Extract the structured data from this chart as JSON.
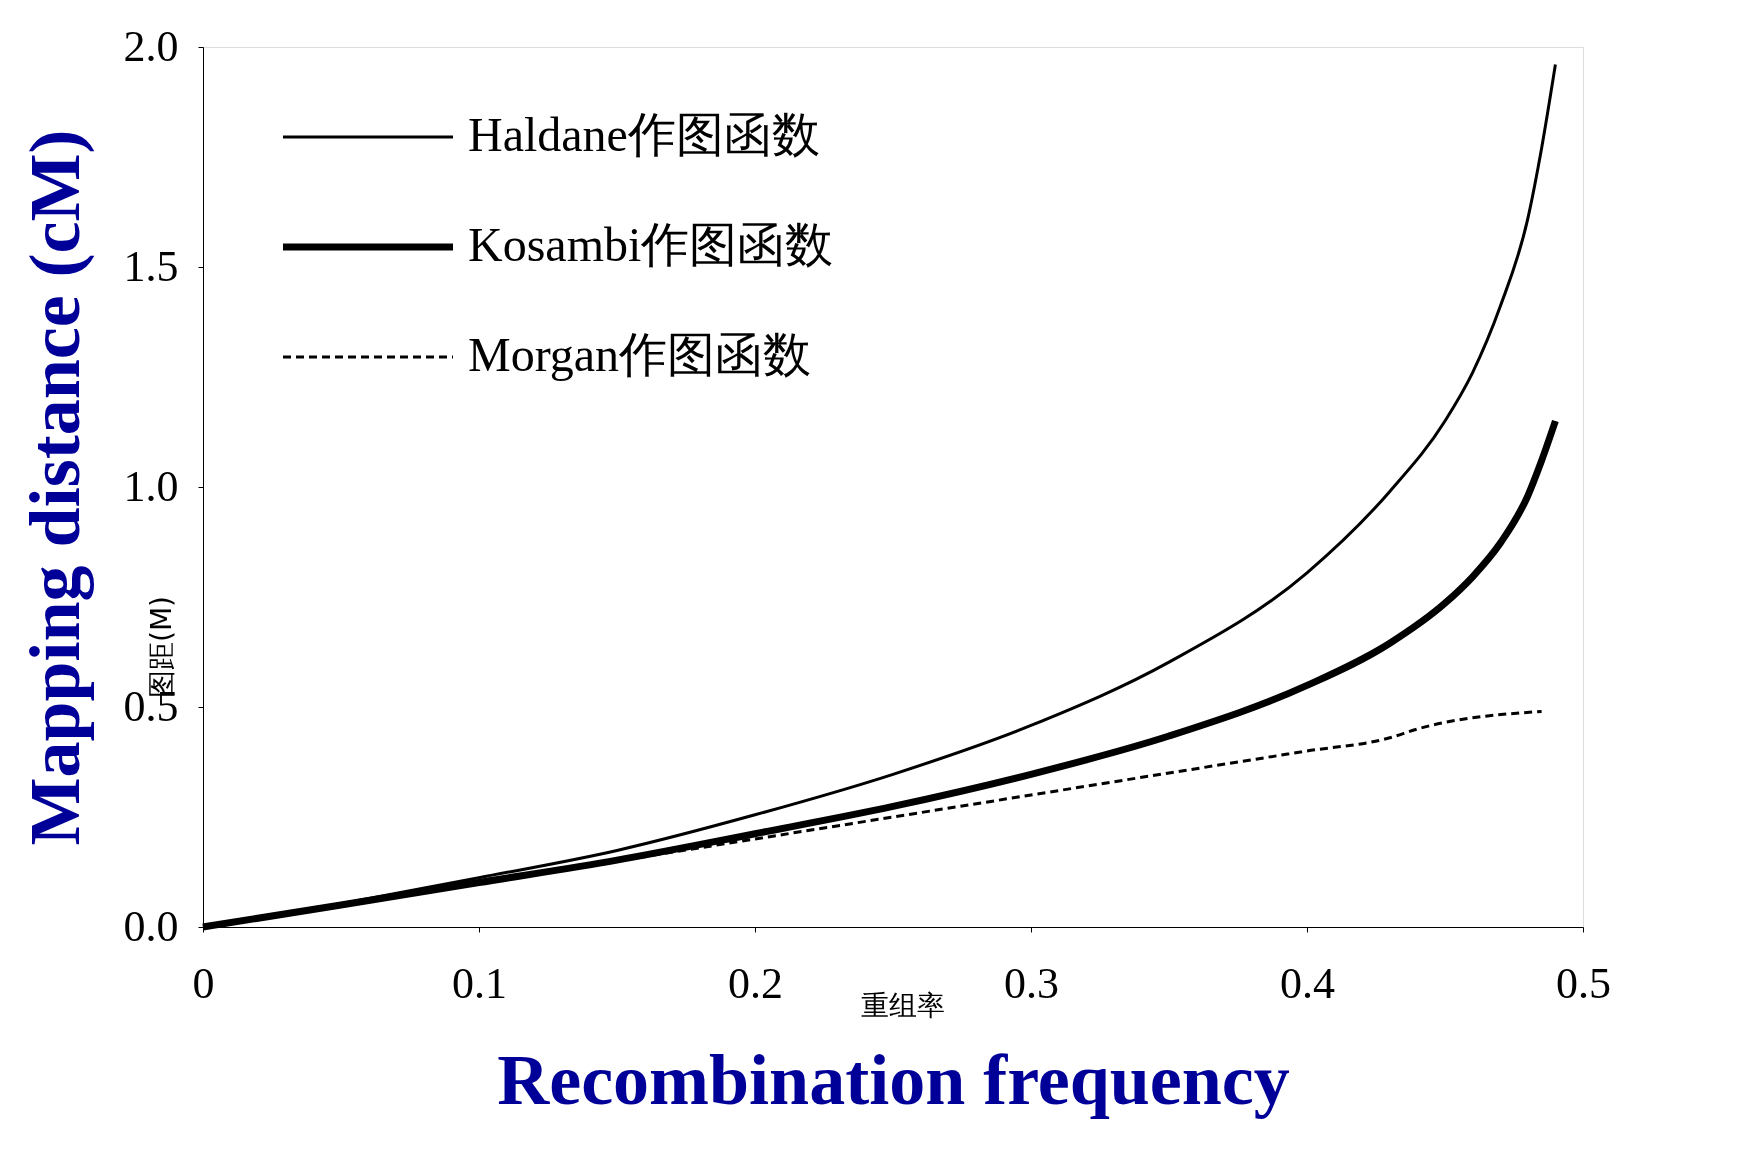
{
  "chart_data": {
    "type": "line",
    "xlabel": "Recombination frequency",
    "ylabel": "Mapping distance (cM)",
    "annotations": [
      "重组率",
      "图距(M)"
    ],
    "xlim": [
      0,
      0.5
    ],
    "xticks": [
      {
        "value": 0,
        "label": "0"
      },
      0.1,
      0.2,
      0.3,
      0.4,
      0.5
    ],
    "ylim": [
      0,
      2.0
    ],
    "yticks": [
      {
        "value": 0,
        "label": "0.0"
      },
      0.5,
      {
        "value": 1,
        "label": "1.0"
      },
      1.5,
      {
        "value": 2,
        "label": "2.0"
      }
    ],
    "grid": false,
    "legend": "top left",
    "marker": "none",
    "series": [
      {
        "name": "Haldane作图函数",
        "color": "#000000",
        "line_style": "solid",
        "x": [
          0,
          0.05,
          0.1,
          0.15,
          0.2,
          0.25,
          0.3,
          0.35,
          0.4,
          0.43,
          0.45,
          0.46,
          0.47,
          0.48,
          0.485,
          0.49
        ],
        "values": [
          0,
          0.053,
          0.112,
          0.174,
          0.255,
          0.347,
          0.458,
          0.602,
          0.805,
          0.99,
          1.15,
          1.26,
          1.41,
          1.61,
          1.77,
          1.96
        ]
      },
      {
        "name": "Kosambi作图函数",
        "color": "#000000",
        "line_style": "solid",
        "x": [
          0,
          0.05,
          0.1,
          0.15,
          0.2,
          0.25,
          0.3,
          0.35,
          0.4,
          0.43,
          0.45,
          0.46,
          0.47,
          0.48,
          0.485,
          0.49
        ],
        "values": [
          0,
          0.05,
          0.101,
          0.152,
          0.212,
          0.274,
          0.347,
          0.434,
          0.549,
          0.645,
          0.736,
          0.796,
          0.872,
          0.98,
          1.06,
          1.15
        ]
      },
      {
        "name": "Morgan作图函数",
        "color": "#000000",
        "line_style": "dashed",
        "x": [
          0,
          0.1,
          0.2,
          0.3,
          0.4,
          0.43,
          0.44,
          0.485
        ],
        "values": [
          0,
          0.1,
          0.2,
          0.3,
          0.4,
          0.43,
          0.45,
          0.49
        ]
      }
    ]
  }
}
